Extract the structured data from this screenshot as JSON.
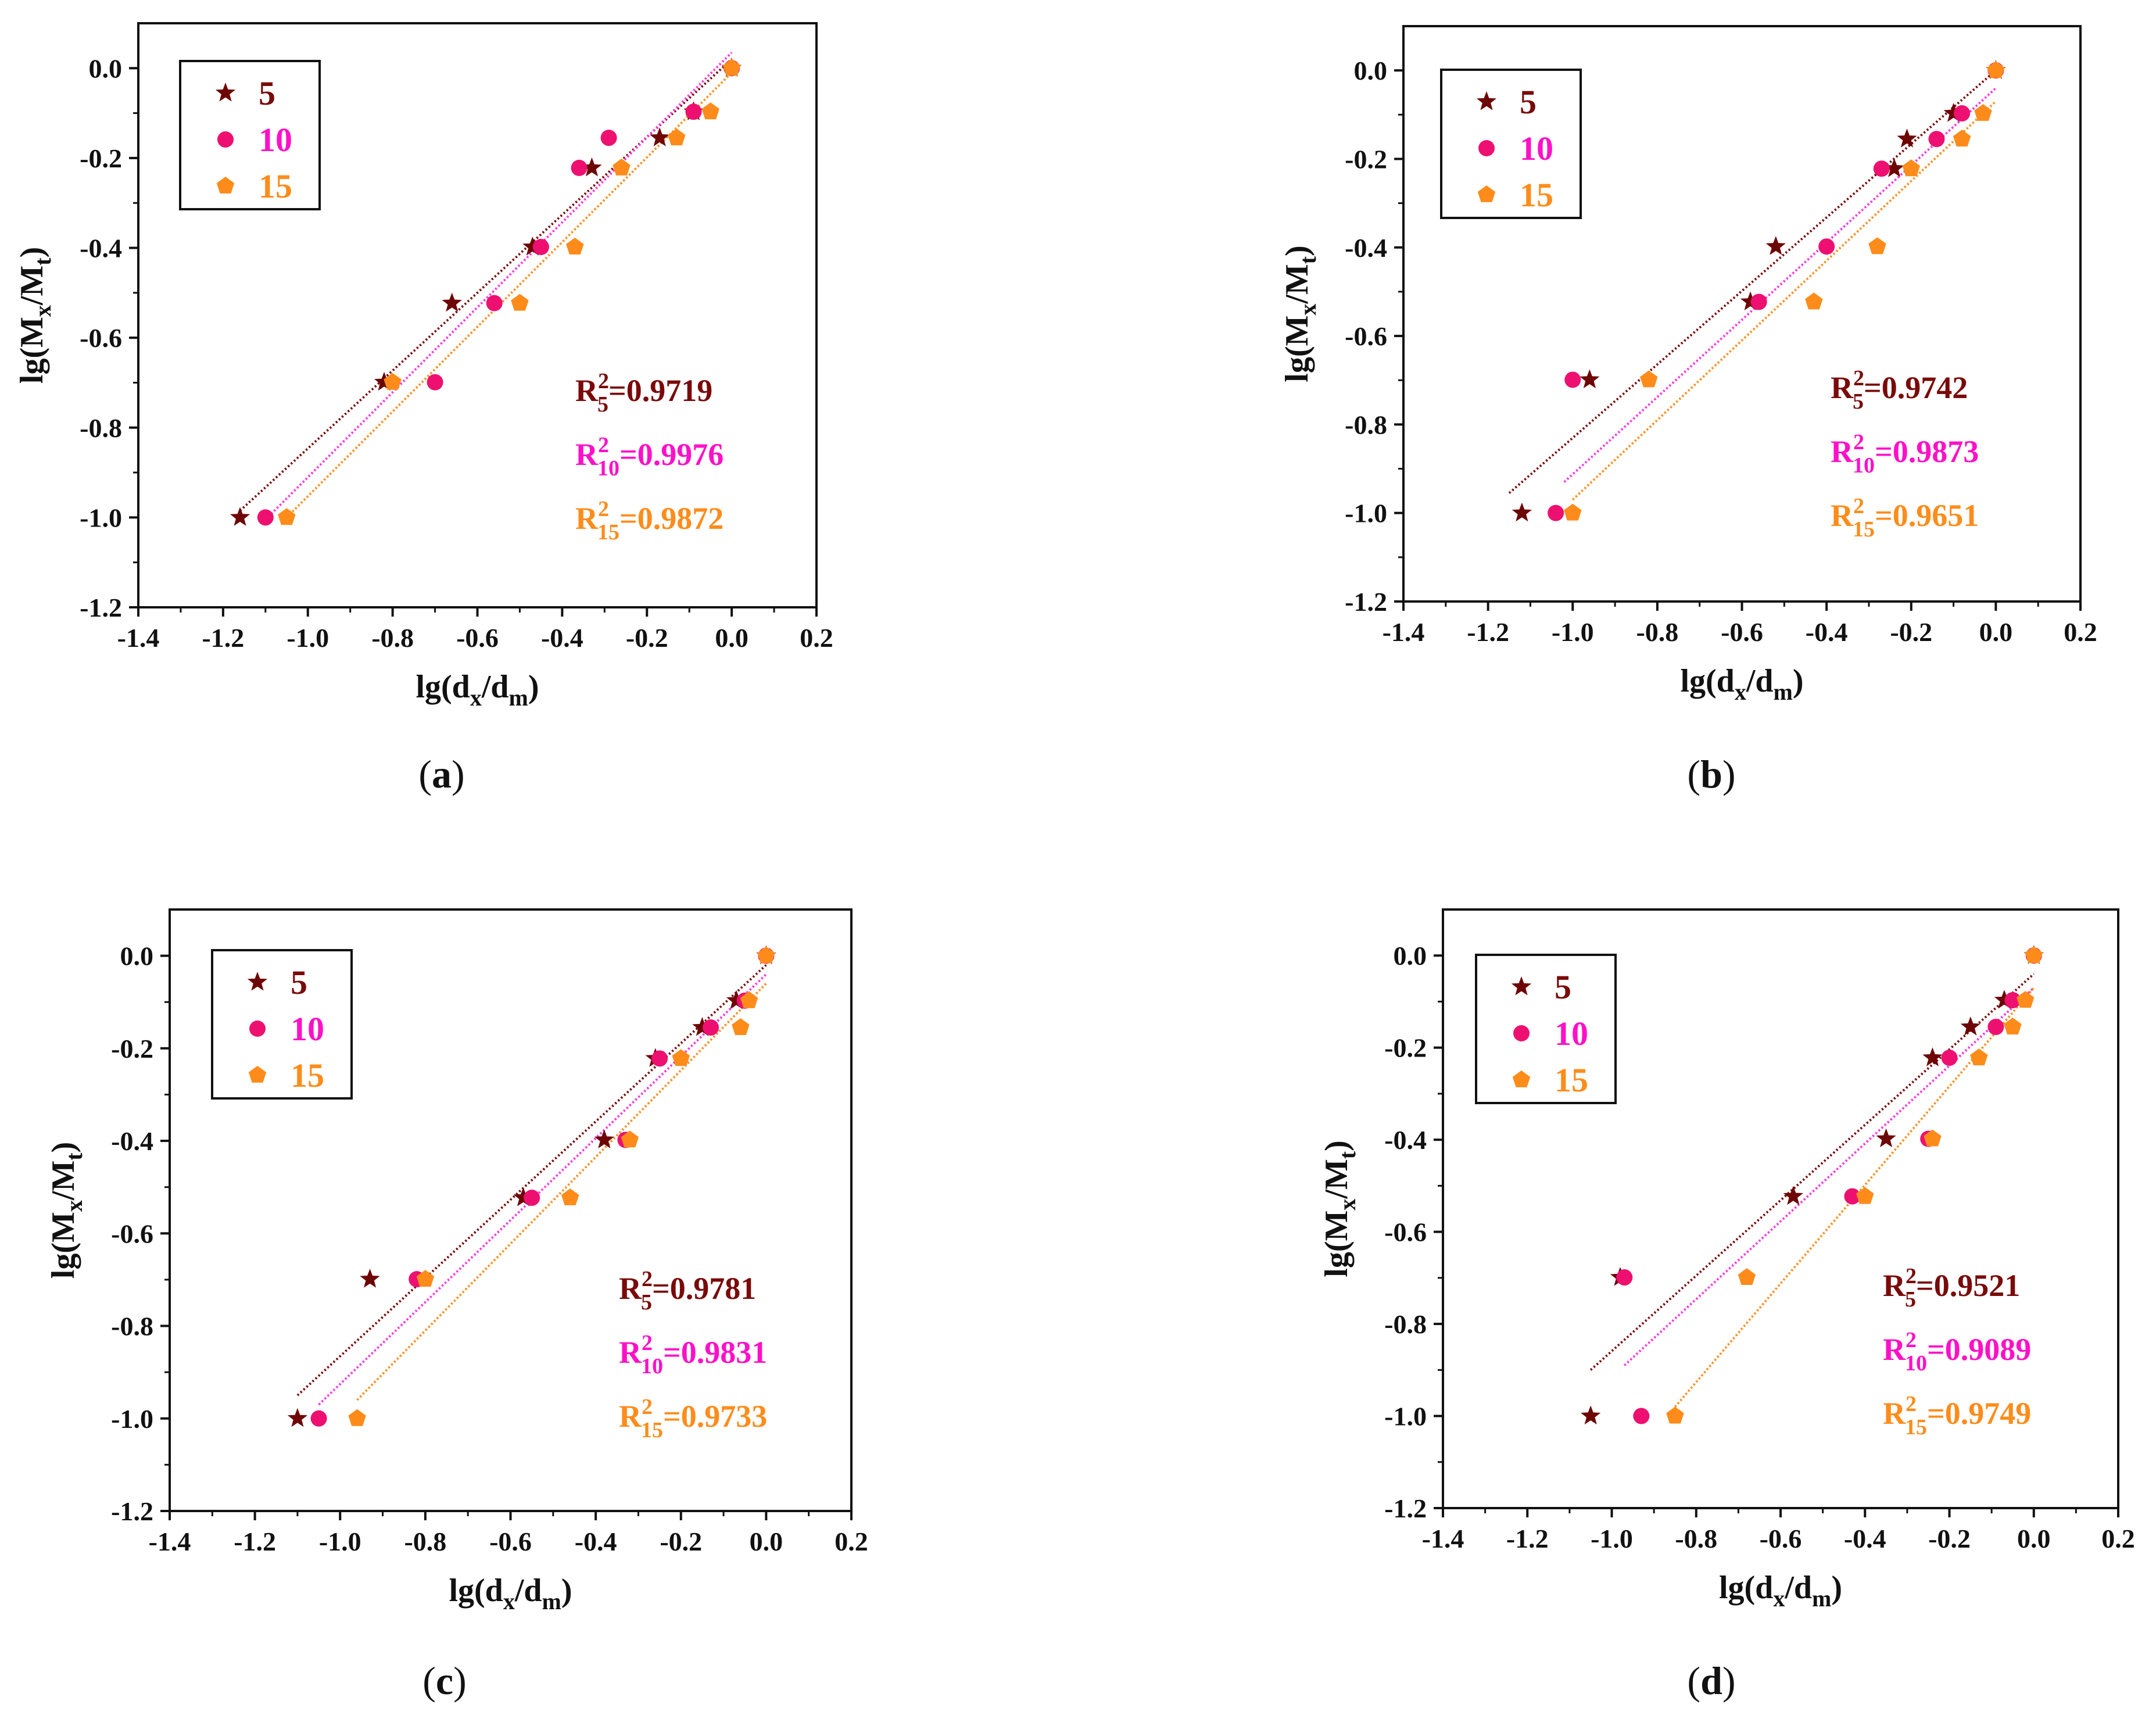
{
  "figure": {
    "series_colors": {
      "5": "#7a0a0a",
      "10": "#ff10c8",
      "15": "#ff8c1a"
    },
    "fit_colors": {
      "5": "#7a0a0a",
      "10": "#ff30e0",
      "15": "#ff8c1a"
    },
    "marker_colors": {
      "5": "#6e0505",
      "10": "#ee1070",
      "15": "#ff8c1a"
    },
    "legend_names": [
      "5",
      "10",
      "15"
    ]
  },
  "chart_data": [
    {
      "panel": "a",
      "caption": "(a)",
      "type": "scatter",
      "xlabel": "lg(d_x/d_m)",
      "ylabel": "lg(M_x/M_t)",
      "xlim": [
        -1.4,
        0.2
      ],
      "ylim": [
        -1.2,
        0.1
      ],
      "xticks": [
        "-1.4",
        "-1.2",
        "-1.0",
        "-0.8",
        "-0.6",
        "-0.4",
        "-0.2",
        "0.0",
        "0.2"
      ],
      "yticks": [
        "0.0",
        "-0.2",
        "-0.4",
        "-0.6",
        "-0.8",
        "-1.0",
        "-1.2"
      ],
      "series": [
        {
          "name": "5",
          "marker": "star",
          "x": [
            -1.16,
            -0.82,
            -0.66,
            -0.47,
            -0.33,
            -0.17,
            -0.09,
            0.0
          ],
          "y": [
            -1.0,
            -0.699,
            -0.523,
            -0.398,
            -0.222,
            -0.155,
            -0.097,
            0.0
          ],
          "fit": [
            [
              -1.16,
              -0.985
            ],
            [
              0.0,
              0.02
            ]
          ],
          "r2": "0.9719"
        },
        {
          "name": "10",
          "marker": "circle",
          "x": [
            -1.1,
            -0.7,
            -0.56,
            -0.45,
            -0.36,
            -0.29,
            -0.09,
            0.0
          ],
          "y": [
            -1.0,
            -0.699,
            -0.523,
            -0.398,
            -0.222,
            -0.155,
            -0.097,
            0.0
          ],
          "fit": [
            [
              -1.1,
              -1.005
            ],
            [
              0.0,
              0.035
            ]
          ],
          "r2": "0.9976"
        },
        {
          "name": "15",
          "marker": "pentagon",
          "x": [
            -1.05,
            -0.8,
            -0.5,
            -0.37,
            -0.26,
            -0.13,
            -0.05,
            0.0
          ],
          "y": [
            -1.0,
            -0.699,
            -0.523,
            -0.398,
            -0.222,
            -0.155,
            -0.097,
            0.0
          ],
          "fit": [
            [
              -1.05,
              -1.0
            ],
            [
              0.0,
              -0.01
            ]
          ],
          "r2": "0.9872"
        }
      ]
    },
    {
      "panel": "b",
      "caption": "(b)",
      "type": "scatter",
      "xlabel": "lg(d_x/d_m)",
      "ylabel": "lg(M_x/M_t)",
      "xlim": [
        -1.4,
        0.2
      ],
      "ylim": [
        -1.2,
        0.1
      ],
      "xticks": [
        "-1.4",
        "-1.2",
        "-1.0",
        "-0.8",
        "-0.6",
        "-0.4",
        "-0.2",
        "0.0",
        "0.2"
      ],
      "yticks": [
        "0.0",
        "-0.2",
        "-0.4",
        "-0.6",
        "-0.8",
        "-1.0",
        "-1.2"
      ],
      "series": [
        {
          "name": "5",
          "marker": "star",
          "x": [
            -1.12,
            -0.96,
            -0.58,
            -0.52,
            -0.24,
            -0.21,
            -0.1,
            0.0
          ],
          "y": [
            -1.0,
            -0.699,
            -0.523,
            -0.398,
            -0.222,
            -0.155,
            -0.097,
            0.0
          ],
          "fit": [
            [
              -1.15,
              -0.955
            ],
            [
              0.0,
              0.0
            ]
          ],
          "r2": "0.9742"
        },
        {
          "name": "10",
          "marker": "circle",
          "x": [
            -1.04,
            -1.0,
            -0.56,
            -0.4,
            -0.27,
            -0.14,
            -0.08,
            0.0
          ],
          "y": [
            -1.0,
            -0.699,
            -0.523,
            -0.398,
            -0.222,
            -0.155,
            -0.097,
            0.0
          ],
          "fit": [
            [
              -1.02,
              -0.93
            ],
            [
              0.0,
              -0.04
            ]
          ],
          "r2": "0.9873"
        },
        {
          "name": "15",
          "marker": "pentagon",
          "x": [
            -1.0,
            -0.82,
            -0.43,
            -0.28,
            -0.2,
            -0.08,
            -0.03,
            0.0
          ],
          "y": [
            -1.0,
            -0.699,
            -0.523,
            -0.398,
            -0.222,
            -0.155,
            -0.097,
            0.0
          ],
          "fit": [
            [
              -1.0,
              -0.97
            ],
            [
              0.0,
              -0.07
            ]
          ],
          "r2": "0.9651"
        }
      ]
    },
    {
      "panel": "c",
      "caption": "(c)",
      "type": "scatter",
      "xlabel": "lg(d_x/d_m)",
      "ylabel": "lg(M_x/M_t)",
      "xlim": [
        -1.4,
        0.2
      ],
      "ylim": [
        -1.2,
        0.1
      ],
      "xticks": [
        "-1.4",
        "-1.2",
        "-1.0",
        "-0.8",
        "-0.6",
        "-0.4",
        "-0.2",
        "0.0",
        "0.2"
      ],
      "yticks": [
        "0.0",
        "-0.2",
        "-0.4",
        "-0.6",
        "-0.8",
        "-1.0",
        "-1.2"
      ],
      "series": [
        {
          "name": "5",
          "marker": "star",
          "x": [
            -1.1,
            -0.93,
            -0.57,
            -0.38,
            -0.26,
            -0.15,
            -0.07,
            0.0
          ],
          "y": [
            -1.0,
            -0.699,
            -0.523,
            -0.398,
            -0.222,
            -0.155,
            -0.097,
            0.0
          ],
          "fit": [
            [
              -1.1,
              -0.95
            ],
            [
              0.0,
              -0.02
            ]
          ],
          "r2": "0.9781"
        },
        {
          "name": "10",
          "marker": "circle",
          "x": [
            -1.05,
            -0.82,
            -0.55,
            -0.33,
            -0.25,
            -0.13,
            -0.05,
            0.0
          ],
          "y": [
            -1.0,
            -0.699,
            -0.523,
            -0.398,
            -0.222,
            -0.155,
            -0.097,
            0.0
          ],
          "fit": [
            [
              -1.05,
              -0.97
            ],
            [
              0.0,
              -0.04
            ]
          ],
          "r2": "0.9831"
        },
        {
          "name": "15",
          "marker": "pentagon",
          "x": [
            -0.96,
            -0.8,
            -0.46,
            -0.32,
            -0.2,
            -0.06,
            -0.04,
            0.0
          ],
          "y": [
            -1.0,
            -0.699,
            -0.523,
            -0.398,
            -0.222,
            -0.155,
            -0.097,
            0.0
          ],
          "fit": [
            [
              -0.96,
              -0.96
            ],
            [
              0.0,
              -0.06
            ]
          ],
          "r2": "0.9733"
        }
      ]
    },
    {
      "panel": "d",
      "caption": "(d)",
      "type": "scatter",
      "xlabel": "lg(d_x/d_m)",
      "ylabel": "lg(M_x/M_t)",
      "xlim": [
        -1.4,
        0.2
      ],
      "ylim": [
        -1.2,
        0.1
      ],
      "xticks": [
        "-1.4",
        "-1.2",
        "-1.0",
        "-0.8",
        "-0.6",
        "-0.4",
        "-0.2",
        "0.0",
        "0.2"
      ],
      "yticks": [
        "0.0",
        "-0.2",
        "-0.4",
        "-0.6",
        "-0.8",
        "-1.0",
        "-1.2"
      ],
      "series": [
        {
          "name": "5",
          "marker": "star",
          "x": [
            -1.05,
            -0.98,
            -0.57,
            -0.35,
            -0.24,
            -0.15,
            -0.07,
            0.0
          ],
          "y": [
            -1.0,
            -0.699,
            -0.523,
            -0.398,
            -0.222,
            -0.155,
            -0.097,
            0.0
          ],
          "fit": [
            [
              -1.05,
              -0.9
            ],
            [
              0.0,
              -0.04
            ]
          ],
          "r2": "0.9521"
        },
        {
          "name": "10",
          "marker": "circle",
          "x": [
            -0.93,
            -0.97,
            -0.43,
            -0.25,
            -0.2,
            -0.09,
            -0.05,
            0.0
          ],
          "y": [
            -1.0,
            -0.699,
            -0.523,
            -0.398,
            -0.222,
            -0.155,
            -0.097,
            0.0
          ],
          "fit": [
            [
              -0.97,
              -0.89
            ],
            [
              0.0,
              -0.07
            ]
          ],
          "r2": "0.9089"
        },
        {
          "name": "15",
          "marker": "pentagon",
          "x": [
            -0.85,
            -0.68,
            -0.4,
            -0.24,
            -0.13,
            -0.05,
            -0.02,
            0.0
          ],
          "y": [
            -1.0,
            -0.699,
            -0.523,
            -0.398,
            -0.222,
            -0.155,
            -0.097,
            0.0
          ],
          "fit": [
            [
              -0.85,
              -0.98
            ],
            [
              0.0,
              -0.07
            ]
          ],
          "r2": "0.9749"
        }
      ]
    }
  ]
}
